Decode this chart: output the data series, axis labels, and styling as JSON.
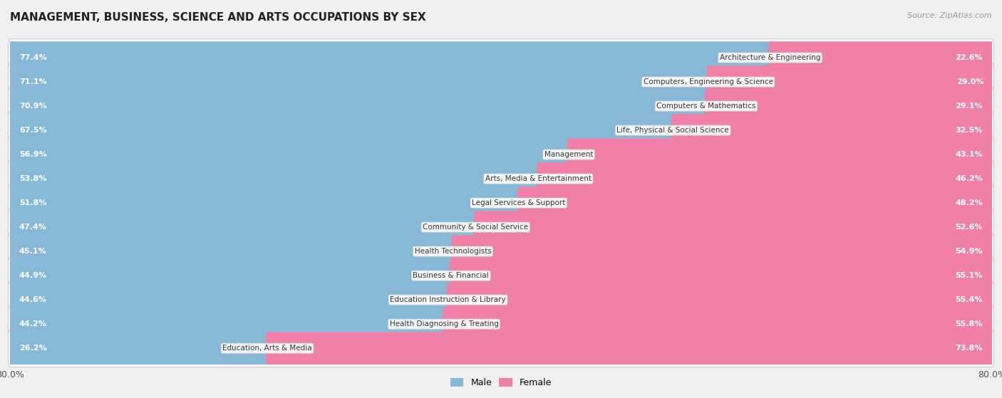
{
  "title": "MANAGEMENT, BUSINESS, SCIENCE AND ARTS OCCUPATIONS BY SEX",
  "source": "Source: ZipAtlas.com",
  "categories": [
    "Architecture & Engineering",
    "Computers, Engineering & Science",
    "Computers & Mathematics",
    "Life, Physical & Social Science",
    "Management",
    "Arts, Media & Entertainment",
    "Legal Services & Support",
    "Community & Social Service",
    "Health Technologists",
    "Business & Financial",
    "Education Instruction & Library",
    "Health Diagnosing & Treating",
    "Education, Arts & Media"
  ],
  "male_pct": [
    77.4,
    71.1,
    70.9,
    67.5,
    56.9,
    53.8,
    51.8,
    47.4,
    45.1,
    44.9,
    44.6,
    44.2,
    26.2
  ],
  "female_pct": [
    22.6,
    29.0,
    29.1,
    32.5,
    43.1,
    46.2,
    48.2,
    52.6,
    54.9,
    55.1,
    55.4,
    55.8,
    73.8
  ],
  "male_color": "#88b8d8",
  "female_color": "#f080a8",
  "bg_color": "#f0f0f0",
  "row_bg_color": "#ffffff",
  "row_border_color": "#cccccc",
  "axis_limit": 80.0,
  "legend_male": "Male",
  "legend_female": "Female",
  "male_label_color_inside": "white",
  "female_label_color_inside": "white",
  "male_label_color_outside": "#555555",
  "female_label_color_outside": "#555555"
}
